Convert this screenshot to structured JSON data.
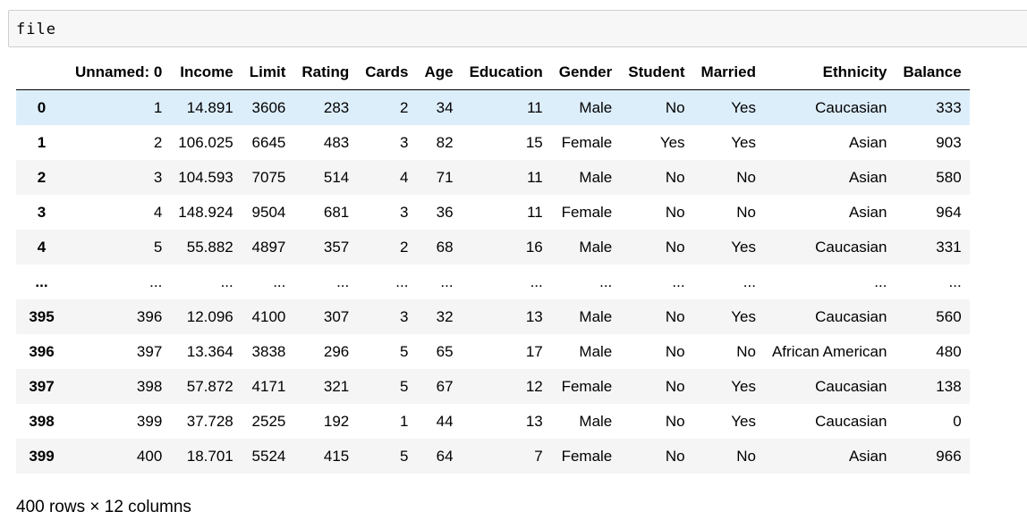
{
  "cell": {
    "code": "file"
  },
  "table": {
    "columns": [
      "",
      "Unnamed: 0",
      "Income",
      "Limit",
      "Rating",
      "Cards",
      "Age",
      "Education",
      "Gender",
      "Student",
      "Married",
      "Ethnicity",
      "Balance"
    ],
    "rows": [
      [
        "0",
        "1",
        "14.891",
        "3606",
        "283",
        "2",
        "34",
        "11",
        "Male",
        "No",
        "Yes",
        "Caucasian",
        "333"
      ],
      [
        "1",
        "2",
        "106.025",
        "6645",
        "483",
        "3",
        "82",
        "15",
        "Female",
        "Yes",
        "Yes",
        "Asian",
        "903"
      ],
      [
        "2",
        "3",
        "104.593",
        "7075",
        "514",
        "4",
        "71",
        "11",
        "Male",
        "No",
        "No",
        "Asian",
        "580"
      ],
      [
        "3",
        "4",
        "148.924",
        "9504",
        "681",
        "3",
        "36",
        "11",
        "Female",
        "No",
        "No",
        "Asian",
        "964"
      ],
      [
        "4",
        "5",
        "55.882",
        "4897",
        "357",
        "2",
        "68",
        "16",
        "Male",
        "No",
        "Yes",
        "Caucasian",
        "331"
      ],
      [
        "...",
        "...",
        "...",
        "...",
        "...",
        "...",
        "...",
        "...",
        "...",
        "...",
        "...",
        "...",
        "..."
      ],
      [
        "395",
        "396",
        "12.096",
        "4100",
        "307",
        "3",
        "32",
        "13",
        "Male",
        "No",
        "Yes",
        "Caucasian",
        "560"
      ],
      [
        "396",
        "397",
        "13.364",
        "3838",
        "296",
        "5",
        "65",
        "17",
        "Male",
        "No",
        "No",
        "African American",
        "480"
      ],
      [
        "397",
        "398",
        "57.872",
        "4171",
        "321",
        "5",
        "67",
        "12",
        "Female",
        "No",
        "Yes",
        "Caucasian",
        "138"
      ],
      [
        "398",
        "399",
        "37.728",
        "2525",
        "192",
        "1",
        "44",
        "13",
        "Male",
        "No",
        "Yes",
        "Caucasian",
        "0"
      ],
      [
        "399",
        "400",
        "18.701",
        "5524",
        "415",
        "5",
        "64",
        "7",
        "Female",
        "No",
        "No",
        "Asian",
        "966"
      ]
    ],
    "highlighted_row": 0
  },
  "footer": {
    "text": "400 rows × 12 columns"
  },
  "colors": {
    "highlight": "#ddeefb",
    "stripe": "#f5f5f5",
    "cell_bg": "#f7f7f7"
  }
}
